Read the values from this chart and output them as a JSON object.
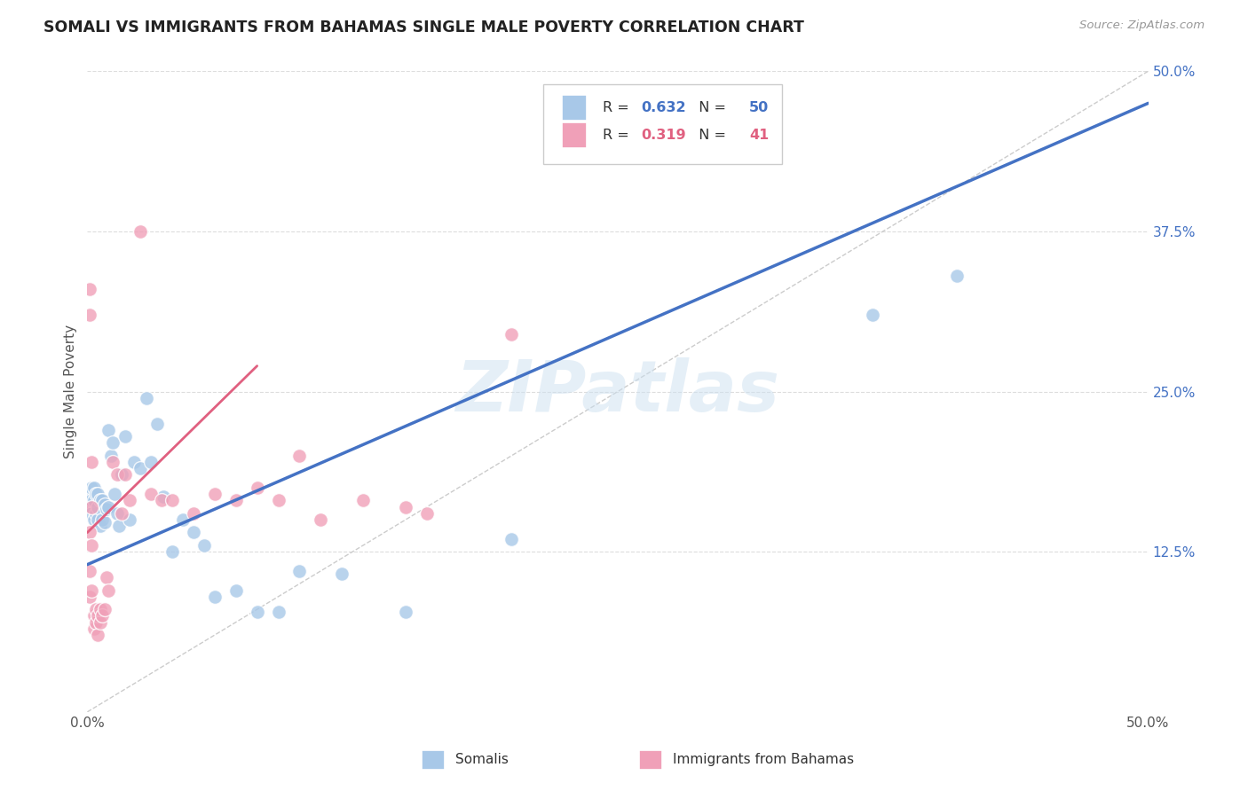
{
  "title": "SOMALI VS IMMIGRANTS FROM BAHAMAS SINGLE MALE POVERTY CORRELATION CHART",
  "source": "Source: ZipAtlas.com",
  "ylabel": "Single Male Poverty",
  "watermark": "ZIPatlas",
  "xlim": [
    0.0,
    0.5
  ],
  "ylim": [
    0.0,
    0.5
  ],
  "ytick_labels_right": [
    "50.0%",
    "37.5%",
    "25.0%",
    "12.5%"
  ],
  "ytick_positions_right": [
    0.5,
    0.375,
    0.25,
    0.125
  ],
  "somali_R": 0.632,
  "somali_N": 50,
  "bahamas_R": 0.319,
  "bahamas_N": 41,
  "somali_color": "#a8c8e8",
  "bahamas_color": "#f0a0b8",
  "somali_line_color": "#4472c4",
  "bahamas_line_color": "#e06080",
  "diagonal_color": "#cccccc",
  "grid_color": "#dddddd",
  "somali_x": [
    0.001,
    0.001,
    0.002,
    0.002,
    0.002,
    0.003,
    0.003,
    0.003,
    0.004,
    0.004,
    0.005,
    0.005,
    0.005,
    0.006,
    0.006,
    0.007,
    0.007,
    0.008,
    0.008,
    0.009,
    0.01,
    0.01,
    0.011,
    0.012,
    0.013,
    0.014,
    0.015,
    0.016,
    0.018,
    0.02,
    0.022,
    0.025,
    0.028,
    0.03,
    0.033,
    0.036,
    0.04,
    0.045,
    0.05,
    0.055,
    0.06,
    0.07,
    0.08,
    0.09,
    0.1,
    0.12,
    0.15,
    0.2,
    0.37,
    0.41
  ],
  "somali_y": [
    0.16,
    0.17,
    0.155,
    0.165,
    0.175,
    0.15,
    0.165,
    0.175,
    0.155,
    0.17,
    0.15,
    0.16,
    0.17,
    0.145,
    0.165,
    0.15,
    0.165,
    0.148,
    0.162,
    0.158,
    0.16,
    0.22,
    0.2,
    0.21,
    0.17,
    0.155,
    0.145,
    0.185,
    0.215,
    0.15,
    0.195,
    0.19,
    0.245,
    0.195,
    0.225,
    0.168,
    0.125,
    0.15,
    0.14,
    0.13,
    0.09,
    0.095,
    0.078,
    0.078,
    0.11,
    0.108,
    0.078,
    0.135,
    0.31,
    0.34
  ],
  "bahamas_x": [
    0.001,
    0.001,
    0.001,
    0.001,
    0.001,
    0.002,
    0.002,
    0.002,
    0.002,
    0.003,
    0.003,
    0.004,
    0.004,
    0.005,
    0.005,
    0.006,
    0.006,
    0.007,
    0.008,
    0.009,
    0.01,
    0.012,
    0.014,
    0.016,
    0.018,
    0.02,
    0.025,
    0.03,
    0.035,
    0.04,
    0.05,
    0.06,
    0.07,
    0.08,
    0.09,
    0.1,
    0.11,
    0.13,
    0.15,
    0.16,
    0.2
  ],
  "bahamas_y": [
    0.31,
    0.33,
    0.09,
    0.11,
    0.14,
    0.095,
    0.13,
    0.16,
    0.195,
    0.075,
    0.065,
    0.07,
    0.08,
    0.06,
    0.075,
    0.07,
    0.08,
    0.075,
    0.08,
    0.105,
    0.095,
    0.195,
    0.185,
    0.155,
    0.185,
    0.165,
    0.375,
    0.17,
    0.165,
    0.165,
    0.155,
    0.17,
    0.165,
    0.175,
    0.165,
    0.2,
    0.15,
    0.165,
    0.16,
    0.155,
    0.295
  ],
  "background_color": "#ffffff",
  "right_axis_color": "#4472c4"
}
